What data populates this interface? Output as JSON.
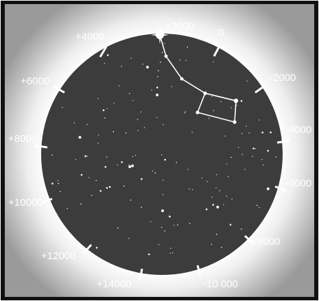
{
  "dial": {
    "tick_labels": [
      "0",
      "-2000",
      "-4000",
      "-6000",
      "-8000",
      "-10 000",
      "+14000",
      "+12000",
      "+10000",
      "+8000",
      "+6000",
      "+4000",
      "+2000"
    ],
    "colors": {
      "background_outer": "#8f8f8f",
      "glow": "#f4f4f4",
      "sky": "#3c3c3c",
      "star": "#ffffff",
      "tick": "#ffffff",
      "label": "#ffffff",
      "frame": "#111111"
    }
  }
}
